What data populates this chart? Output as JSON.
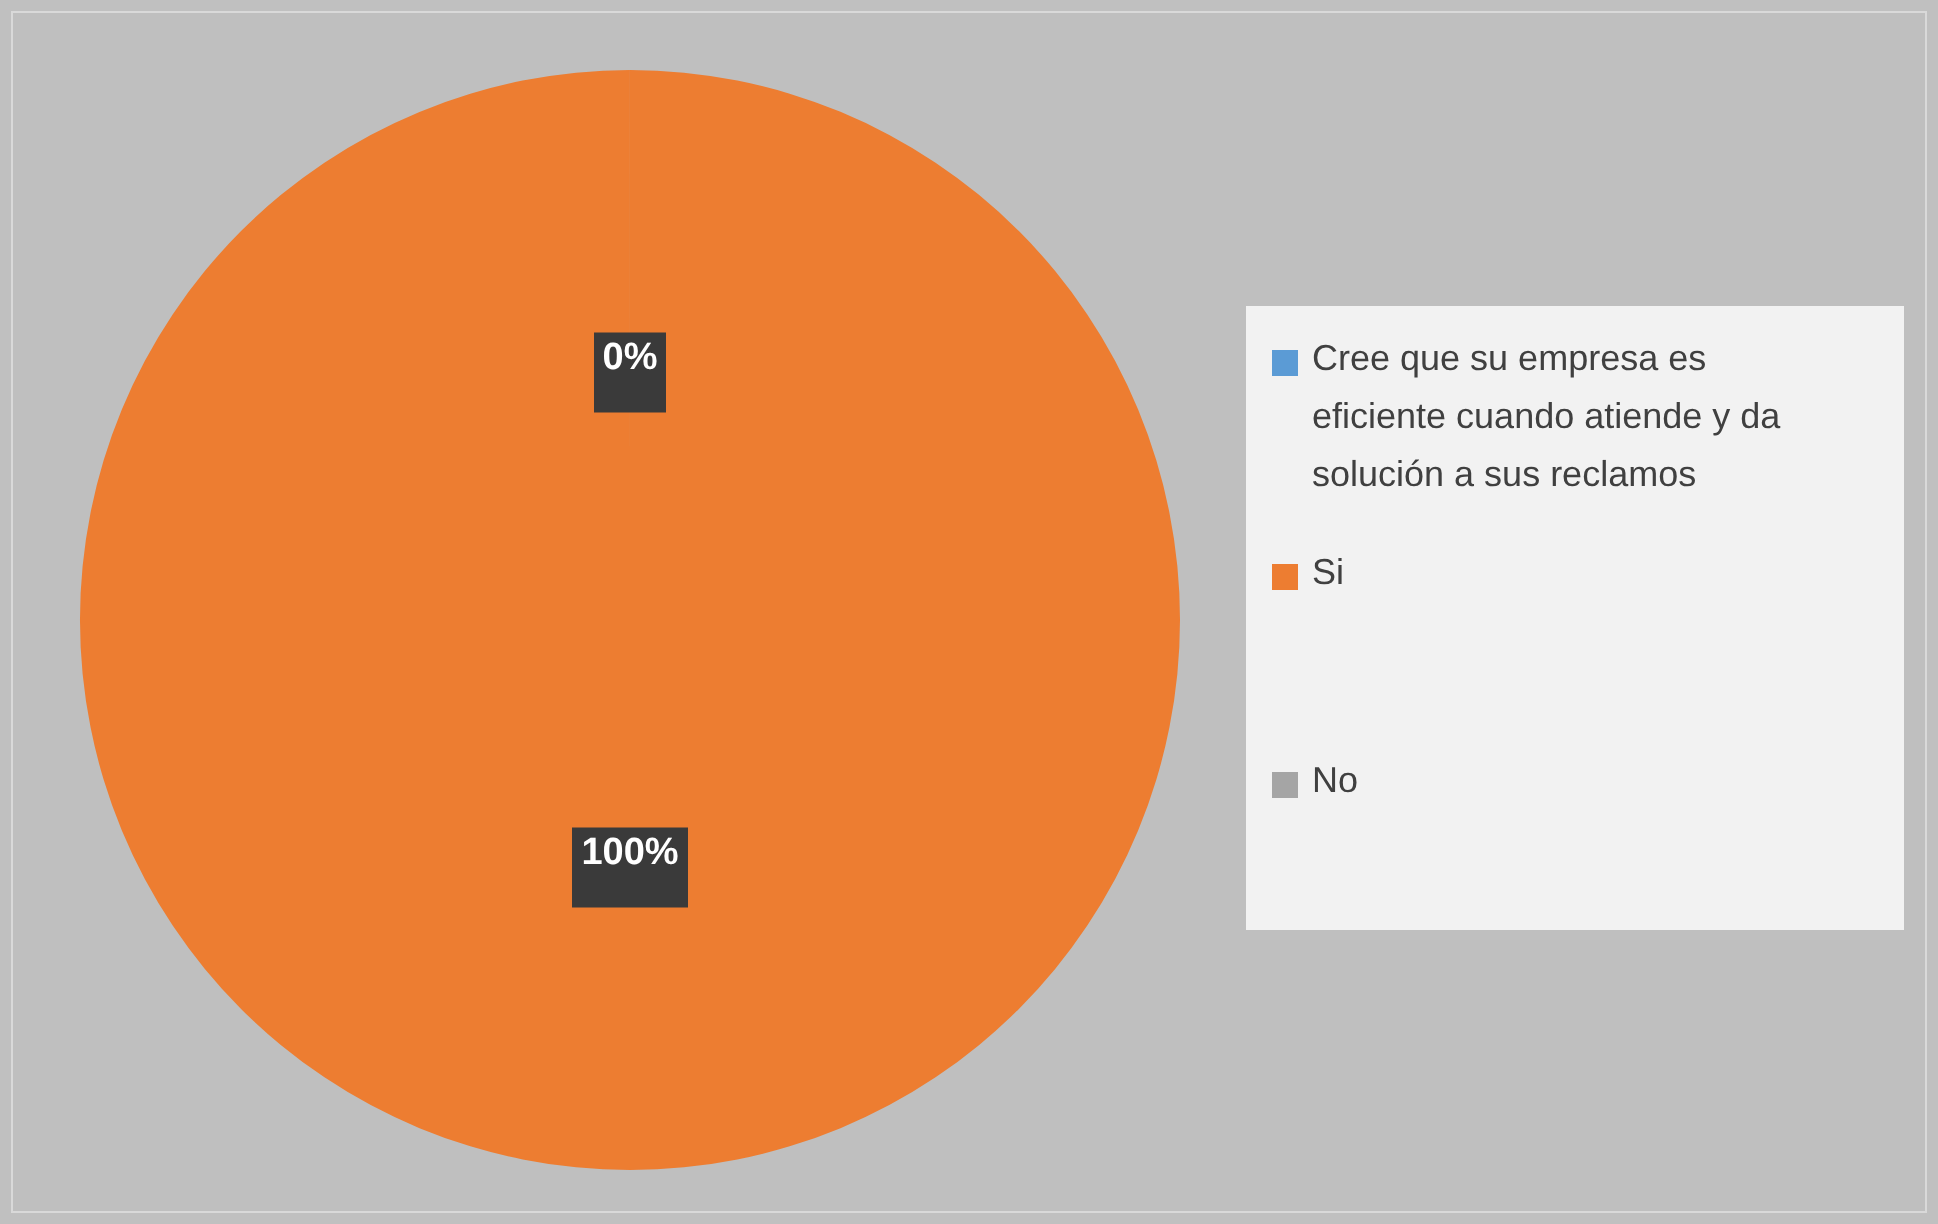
{
  "chart_data": {
    "type": "pie",
    "categories": [
      "Cree que su empresa es eficiente cuando atiende y da solución a sus reclamos",
      "Si",
      "No"
    ],
    "values": [
      0,
      100,
      0
    ],
    "colors": [
      "#5b9bd5",
      "#ed7d31",
      "#a5a5a5"
    ],
    "value_labels": [
      null,
      "100%",
      "0%"
    ],
    "legend": "right"
  }
}
